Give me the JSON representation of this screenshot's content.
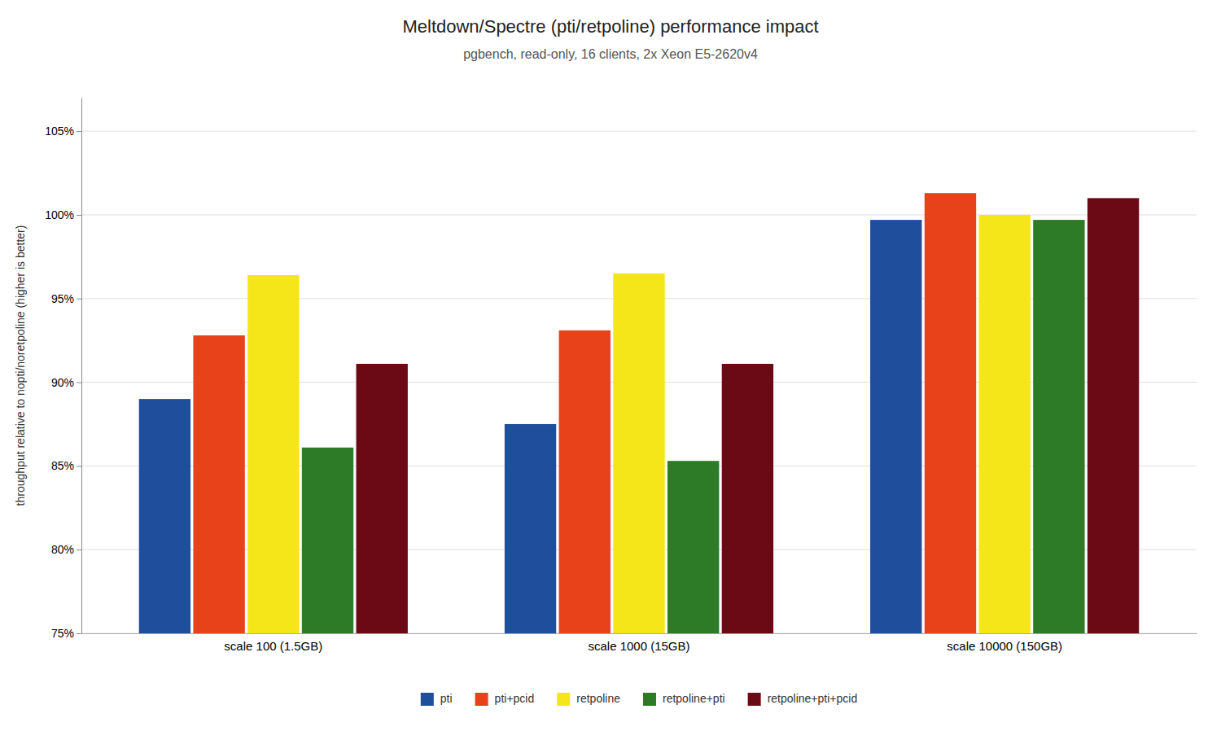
{
  "chart_data": {
    "type": "bar",
    "title": "Meltdown/Spectre (pti/retpoline) performance impact",
    "subtitle": "pgbench, read-only, 16 clients, 2x Xeon E5-2620v4",
    "ylabel": "throughput relative to nopti/noretpoline (higher is better)",
    "categories": [
      "scale 100 (1.5GB)",
      "scale 1000 (15GB)",
      "scale 10000 (150GB)"
    ],
    "series": [
      {
        "name": "pti",
        "color": "#1f4e9c",
        "values": [
          89.0,
          87.5,
          99.7
        ]
      },
      {
        "name": "pti+pcid",
        "color": "#e8421a",
        "values": [
          92.8,
          93.1,
          101.3
        ]
      },
      {
        "name": "retpoline",
        "color": "#f5e61a",
        "values": [
          96.4,
          96.5,
          100.0
        ]
      },
      {
        "name": "retpoline+pti",
        "color": "#2d7a27",
        "values": [
          86.1,
          85.3,
          99.7
        ]
      },
      {
        "name": "retpoline+pti+pcid",
        "color": "#6b0a14",
        "values": [
          91.1,
          91.1,
          101.0
        ]
      }
    ],
    "ylim": [
      75,
      107
    ],
    "yticks": [
      {
        "value": 75,
        "label": "75%"
      },
      {
        "value": 80,
        "label": "80%"
      },
      {
        "value": 85,
        "label": "85%"
      },
      {
        "value": 90,
        "label": "90%"
      },
      {
        "value": 95,
        "label": "95%"
      },
      {
        "value": 100,
        "label": "100%"
      },
      {
        "value": 105,
        "label": "105%"
      }
    ],
    "grid": true,
    "legend": "bottom"
  }
}
